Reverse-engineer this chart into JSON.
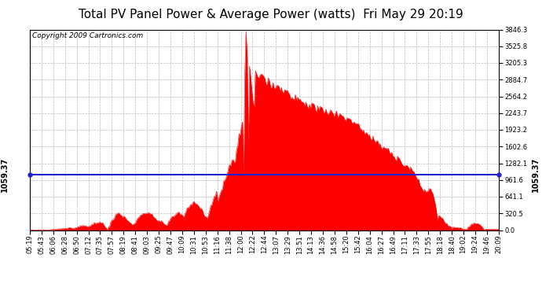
{
  "title": "Total PV Panel Power & Average Power (watts)  Fri May 29 20:19",
  "copyright": "Copyright 2009 Cartronics.com",
  "avg_power": 1059.37,
  "ymax": 3846.3,
  "yticks": [
    0.0,
    320.5,
    641.1,
    961.6,
    1282.1,
    1602.6,
    1923.2,
    2243.7,
    2564.2,
    2884.7,
    3205.3,
    3525.8,
    3846.3
  ],
  "ytick_labels": [
    "0.0",
    "320.5",
    "641.1",
    "961.6",
    "1282.1",
    "1602.6",
    "1923.2",
    "2243.7",
    "2564.2",
    "2884.7",
    "3205.3",
    "3525.8",
    "3846.3"
  ],
  "xtick_labels": [
    "05:19",
    "05:43",
    "06:06",
    "06:28",
    "06:50",
    "07:12",
    "07:35",
    "07:57",
    "08:19",
    "08:41",
    "09:03",
    "09:25",
    "09:47",
    "10:09",
    "10:31",
    "10:53",
    "11:16",
    "11:38",
    "12:00",
    "12:22",
    "12:44",
    "13:07",
    "13:29",
    "13:51",
    "14:13",
    "14:36",
    "14:58",
    "15:20",
    "15:42",
    "16:04",
    "16:27",
    "16:49",
    "17:11",
    "17:33",
    "17:55",
    "18:18",
    "18:40",
    "19:02",
    "19:24",
    "19:46",
    "20:09"
  ],
  "fill_color": "#FF0000",
  "avg_line_color": "#2222CC",
  "bg_color": "#FFFFFF",
  "plot_bg_color": "#FFFFFF",
  "grid_color": "#BBBBBB",
  "title_fontsize": 11,
  "copyright_fontsize": 6.5,
  "tick_fontsize": 6,
  "avg_label_fontsize": 7
}
